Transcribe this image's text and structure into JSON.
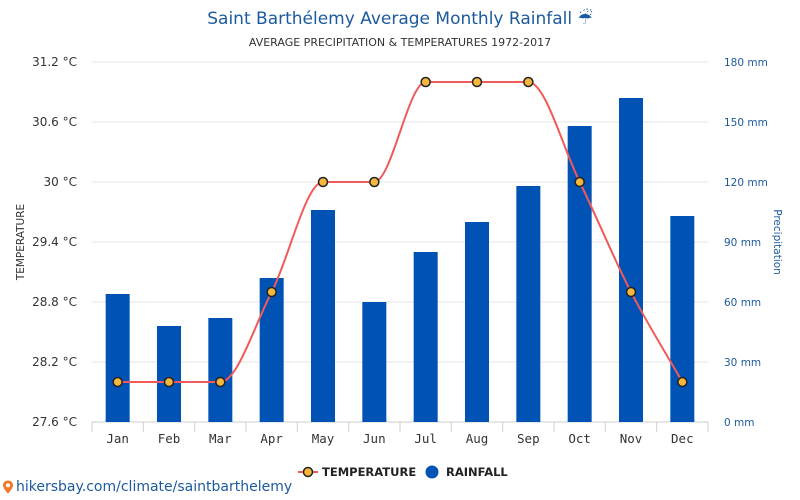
{
  "chart_data": {
    "type": "bar+line",
    "title": "Saint Barthélemy Average Monthly Rainfall",
    "title_icon": "umbrella-rain-icon",
    "subtitle": "AVERAGE PRECIPITATION & TEMPERATURES 1972-2017",
    "categories": [
      "Jan",
      "Feb",
      "Mar",
      "Apr",
      "May",
      "Jun",
      "Jul",
      "Aug",
      "Sep",
      "Oct",
      "Nov",
      "Dec"
    ],
    "series": [
      {
        "name": "TEMPERATURE",
        "type": "line",
        "axis": "left",
        "color": "#f05a5a",
        "values": [
          28.0,
          28.0,
          28.0,
          28.9,
          30.0,
          30.0,
          31.0,
          31.0,
          31.0,
          30.0,
          28.9,
          28.0
        ]
      },
      {
        "name": "RAINFALL",
        "type": "bar",
        "axis": "right",
        "color": "#0052b4",
        "values": [
          64,
          48,
          52,
          72,
          106,
          60,
          85,
          100,
          118,
          148,
          162,
          103
        ]
      }
    ],
    "y_left": {
      "label": "TEMPERATURE",
      "ticks": [
        "31.2 °C",
        "30.6 °C",
        "30 °C",
        "29.4 °C",
        "28.8 °C",
        "28.2 °C",
        "27.6 °C"
      ],
      "tick_values": [
        31.2,
        30.6,
        30.0,
        29.4,
        28.8,
        28.2,
        27.6
      ],
      "range": [
        27.6,
        31.2
      ]
    },
    "y_right": {
      "label": "Precipitation",
      "ticks": [
        "180 mm",
        "150 mm",
        "120 mm",
        "90 mm",
        "60 mm",
        "30 mm",
        "0 mm"
      ],
      "tick_values": [
        180,
        150,
        120,
        90,
        60,
        30,
        0
      ],
      "range": [
        0,
        180
      ]
    },
    "grid": true,
    "legend_position": "bottom-center",
    "legend": [
      "TEMPERATURE",
      "RAINFALL"
    ]
  },
  "footer": {
    "link_text": "hikersbay.com/climate/saintbarthelemy",
    "icon": "map-pin-icon"
  }
}
